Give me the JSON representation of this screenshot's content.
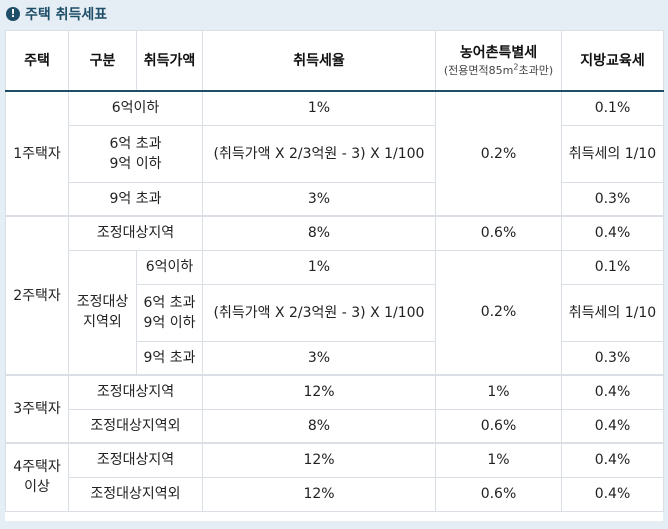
{
  "section_title": "주택 취득세표",
  "header": {
    "house": "주택",
    "category": "구분",
    "price": "취득가액",
    "tax_rate": "취득세율",
    "rural_tax": "농어촌특별세",
    "rural_tax_note_prefix": "(전용면적85m",
    "rural_tax_note_sup": "2",
    "rural_tax_note_suffix": "초과만)",
    "edu_tax": "지방교육세"
  },
  "rows": {
    "h1": {
      "label": "1주택자",
      "r1": {
        "price": "6억이하",
        "rate": "1%",
        "edu": "0.1%"
      },
      "r2": {
        "price_line1": "6억 초과",
        "price_line2": "9억 이하",
        "rate": "(취득가액 X 2/3억원 - 3) X 1/100",
        "edu": "취득세의 1/10"
      },
      "r3": {
        "price": "9억 초과",
        "rate": "3%",
        "edu": "0.3%"
      },
      "rural": "0.2%"
    },
    "h2": {
      "label": "2주택자",
      "r1": {
        "category": "조정대상지역",
        "rate": "8%",
        "rural": "0.6%",
        "edu": "0.4%"
      },
      "cat_line1": "조정대상",
      "cat_line2": "지역외",
      "r2": {
        "price": "6억이하",
        "rate": "1%",
        "edu": "0.1%"
      },
      "r3": {
        "price_line1": "6억 초과",
        "price_line2": "9억 이하",
        "rate": "(취득가액 X 2/3억원 - 3) X 1/100",
        "edu": "취득세의 1/10"
      },
      "r4": {
        "price": "9억 초과",
        "rate": "3%",
        "edu": "0.3%"
      },
      "rural": "0.2%"
    },
    "h3": {
      "label": "3주택자",
      "r1": {
        "category": "조정대상지역",
        "rate": "12%",
        "rural": "1%",
        "edu": "0.4%"
      },
      "r2": {
        "category": "조정대상지역외",
        "rate": "8%",
        "rural": "0.6%",
        "edu": "0.4%"
      }
    },
    "h4": {
      "label_line1": "4주택자",
      "label_line2": "이상",
      "r1": {
        "category": "조정대상지역",
        "rate": "12%",
        "rural": "1%",
        "edu": "0.4%"
      },
      "r2": {
        "category": "조정대상지역외",
        "rate": "12%",
        "rural": "0.6%",
        "edu": "0.4%"
      }
    }
  }
}
